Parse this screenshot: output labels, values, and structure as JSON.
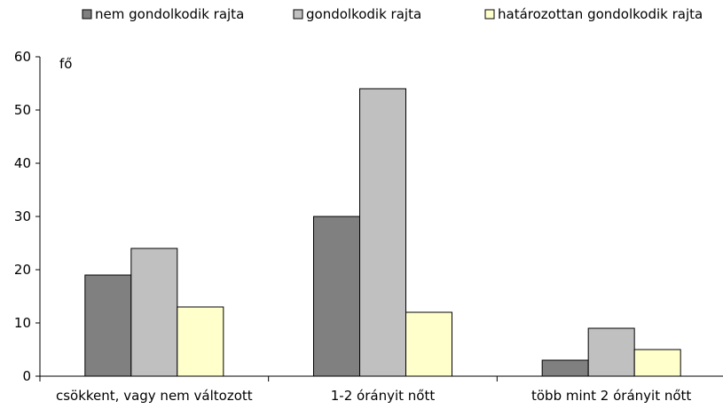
{
  "chart_data": {
    "type": "bar",
    "title": "",
    "xlabel": "",
    "ylabel": "fő",
    "ylim": [
      0,
      60
    ],
    "yticks": [
      0,
      10,
      20,
      30,
      40,
      50,
      60
    ],
    "grid": false,
    "legend_position": "top",
    "categories": [
      "csökkent, vagy nem változott",
      "1-2 órányit nőtt",
      "több mint 2 órányit nőtt"
    ],
    "series": [
      {
        "name": "nem gondolkodik rajta",
        "color": "#808080",
        "values": [
          19,
          30,
          3
        ]
      },
      {
        "name": "gondolkodik rajta",
        "color": "#c0c0c0",
        "values": [
          24,
          54,
          9
        ]
      },
      {
        "name": "határozottan gondolkodik rajta",
        "color": "#ffffcc",
        "values": [
          13,
          12,
          5
        ]
      }
    ]
  }
}
